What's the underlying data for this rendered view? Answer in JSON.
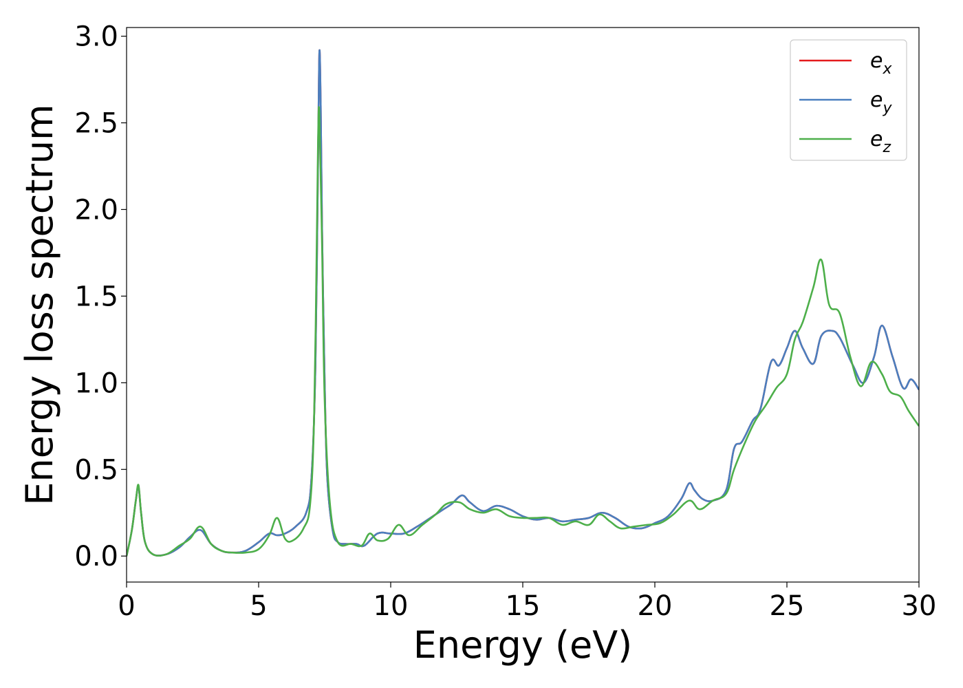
{
  "chart_data": {
    "type": "line",
    "title": "",
    "xlabel": "Energy (eV)",
    "ylabel": "Energy loss spectrum",
    "xlim": [
      0,
      30
    ],
    "ylim": [
      -0.15,
      3.05
    ],
    "xticks": [
      0,
      5,
      10,
      15,
      20,
      25,
      30
    ],
    "xtick_labels": [
      "0",
      "5",
      "10",
      "15",
      "20",
      "25",
      "30"
    ],
    "yticks": [
      0.0,
      0.5,
      1.0,
      1.5,
      2.0,
      2.5,
      3.0
    ],
    "ytick_labels": [
      "0.0",
      "0.5",
      "1.0",
      "1.5",
      "2.0",
      "2.5",
      "3.0"
    ],
    "grid": false,
    "legend_position": "top-right",
    "series": [
      {
        "name": "e_x",
        "label_base": "e",
        "label_sub": "x",
        "color": "#e41a1c",
        "x": [
          0,
          0.2,
          0.35,
          0.45,
          0.55,
          0.7,
          1.0,
          1.5,
          2.0,
          2.4,
          2.8,
          3.2,
          3.6,
          4.0,
          4.5,
          5.0,
          5.4,
          5.7,
          6.0,
          6.4,
          6.8,
          7.0,
          7.15,
          7.25,
          7.3,
          7.35,
          7.4,
          7.5,
          7.6,
          7.8,
          8.0,
          8.3,
          8.7,
          9.0,
          9.5,
          10.0,
          10.5,
          11.0,
          11.5,
          12.0,
          12.3,
          12.7,
          13.0,
          13.5,
          14.0,
          14.5,
          15.0,
          15.5,
          16.0,
          16.5,
          17.0,
          17.5,
          18.0,
          18.5,
          19.0,
          19.5,
          20.0,
          20.5,
          21.0,
          21.3,
          21.5,
          21.8,
          22.2,
          22.7,
          23.0,
          23.3,
          23.7,
          24.0,
          24.4,
          24.7,
          25.0,
          25.3,
          25.6,
          26.0,
          26.3,
          26.7,
          27.0,
          27.5,
          27.9,
          28.3,
          28.6,
          29.0,
          29.4,
          29.7,
          30.0
        ],
        "y": [
          0.0,
          0.15,
          0.32,
          0.4,
          0.25,
          0.08,
          0.01,
          0.01,
          0.05,
          0.11,
          0.15,
          0.07,
          0.03,
          0.02,
          0.03,
          0.08,
          0.13,
          0.12,
          0.13,
          0.17,
          0.25,
          0.45,
          1.1,
          2.3,
          2.91,
          2.6,
          1.9,
          1.0,
          0.45,
          0.15,
          0.08,
          0.07,
          0.07,
          0.06,
          0.13,
          0.13,
          0.13,
          0.17,
          0.22,
          0.27,
          0.3,
          0.35,
          0.31,
          0.26,
          0.29,
          0.27,
          0.23,
          0.21,
          0.22,
          0.2,
          0.21,
          0.22,
          0.25,
          0.22,
          0.17,
          0.16,
          0.19,
          0.23,
          0.33,
          0.42,
          0.38,
          0.33,
          0.32,
          0.38,
          0.62,
          0.66,
          0.78,
          0.85,
          1.12,
          1.1,
          1.2,
          1.3,
          1.2,
          1.11,
          1.27,
          1.3,
          1.26,
          1.1,
          1.0,
          1.15,
          1.33,
          1.15,
          0.97,
          1.02,
          0.96
        ]
      },
      {
        "name": "e_y",
        "label_base": "e",
        "label_sub": "y",
        "color": "#4a7fbf",
        "x": [
          0,
          0.2,
          0.35,
          0.45,
          0.55,
          0.7,
          1.0,
          1.5,
          2.0,
          2.4,
          2.8,
          3.2,
          3.6,
          4.0,
          4.5,
          5.0,
          5.4,
          5.7,
          6.0,
          6.4,
          6.8,
          7.0,
          7.15,
          7.25,
          7.3,
          7.35,
          7.4,
          7.5,
          7.6,
          7.8,
          8.0,
          8.3,
          8.7,
          9.0,
          9.5,
          10.0,
          10.5,
          11.0,
          11.5,
          12.0,
          12.3,
          12.7,
          13.0,
          13.5,
          14.0,
          14.5,
          15.0,
          15.5,
          16.0,
          16.5,
          17.0,
          17.5,
          18.0,
          18.5,
          19.0,
          19.5,
          20.0,
          20.5,
          21.0,
          21.3,
          21.5,
          21.8,
          22.2,
          22.7,
          23.0,
          23.3,
          23.7,
          24.0,
          24.4,
          24.7,
          25.0,
          25.3,
          25.6,
          26.0,
          26.3,
          26.7,
          27.0,
          27.5,
          27.9,
          28.3,
          28.6,
          29.0,
          29.4,
          29.7,
          30.0
        ],
        "y": [
          0.0,
          0.15,
          0.32,
          0.4,
          0.25,
          0.08,
          0.01,
          0.01,
          0.05,
          0.11,
          0.15,
          0.07,
          0.03,
          0.02,
          0.03,
          0.08,
          0.13,
          0.12,
          0.13,
          0.17,
          0.25,
          0.45,
          1.1,
          2.3,
          2.91,
          2.6,
          1.9,
          1.0,
          0.45,
          0.15,
          0.08,
          0.07,
          0.07,
          0.06,
          0.13,
          0.13,
          0.13,
          0.17,
          0.22,
          0.27,
          0.3,
          0.35,
          0.31,
          0.26,
          0.29,
          0.27,
          0.23,
          0.21,
          0.22,
          0.2,
          0.21,
          0.22,
          0.25,
          0.22,
          0.17,
          0.16,
          0.19,
          0.23,
          0.33,
          0.42,
          0.38,
          0.33,
          0.32,
          0.38,
          0.62,
          0.66,
          0.78,
          0.85,
          1.12,
          1.1,
          1.2,
          1.3,
          1.2,
          1.11,
          1.27,
          1.3,
          1.26,
          1.1,
          1.0,
          1.15,
          1.33,
          1.15,
          0.97,
          1.02,
          0.96
        ]
      },
      {
        "name": "e_z",
        "label_base": "e",
        "label_sub": "z",
        "color": "#4daf4a",
        "x": [
          0,
          0.2,
          0.35,
          0.45,
          0.55,
          0.7,
          1.0,
          1.5,
          2.0,
          2.4,
          2.8,
          3.2,
          3.6,
          4.0,
          4.5,
          5.0,
          5.4,
          5.7,
          6.0,
          6.3,
          6.7,
          6.95,
          7.1,
          7.2,
          7.25,
          7.3,
          7.4,
          7.5,
          7.7,
          8.0,
          8.5,
          8.9,
          9.2,
          9.5,
          9.9,
          10.3,
          10.7,
          11.2,
          11.7,
          12.1,
          12.6,
          13.0,
          13.5,
          14.0,
          14.5,
          15.0,
          15.5,
          16.0,
          16.5,
          17.0,
          17.5,
          17.9,
          18.3,
          18.7,
          19.2,
          19.7,
          20.2,
          20.7,
          21.3,
          21.7,
          22.2,
          22.7,
          23.0,
          23.4,
          23.8,
          24.2,
          24.6,
          25.0,
          25.3,
          25.6,
          26.0,
          26.3,
          26.6,
          27.0,
          27.4,
          27.8,
          28.2,
          28.6,
          28.9,
          29.3,
          29.6,
          30.0
        ],
        "y": [
          0.0,
          0.15,
          0.32,
          0.41,
          0.25,
          0.08,
          0.01,
          0.01,
          0.06,
          0.1,
          0.17,
          0.07,
          0.03,
          0.02,
          0.02,
          0.04,
          0.12,
          0.22,
          0.1,
          0.09,
          0.16,
          0.3,
          0.8,
          1.8,
          2.4,
          2.55,
          1.8,
          0.9,
          0.3,
          0.08,
          0.07,
          0.06,
          0.13,
          0.09,
          0.1,
          0.18,
          0.12,
          0.18,
          0.24,
          0.3,
          0.31,
          0.27,
          0.25,
          0.27,
          0.23,
          0.22,
          0.22,
          0.22,
          0.18,
          0.2,
          0.18,
          0.24,
          0.2,
          0.16,
          0.17,
          0.18,
          0.19,
          0.24,
          0.32,
          0.27,
          0.32,
          0.36,
          0.5,
          0.65,
          0.78,
          0.87,
          0.97,
          1.05,
          1.25,
          1.35,
          1.55,
          1.71,
          1.45,
          1.4,
          1.15,
          0.98,
          1.12,
          1.05,
          0.95,
          0.92,
          0.84,
          0.75
        ]
      }
    ]
  }
}
